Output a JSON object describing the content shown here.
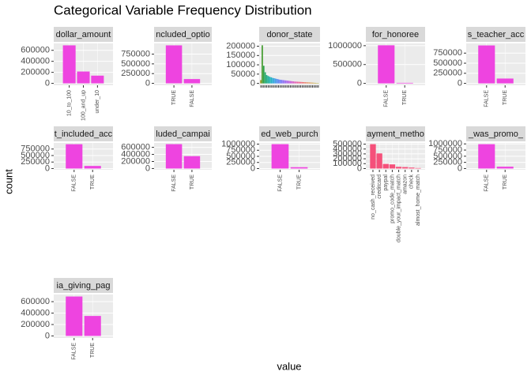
{
  "title": "Categorical Variable Frequency Distribution",
  "x_label": "value",
  "y_label": "count",
  "bar_color": "#ee44e0",
  "chart_data": [
    {
      "type": "bar",
      "title": "dollar_amount",
      "categories": [
        "10_to_100",
        "100_and_up",
        "under_10"
      ],
      "values": [
        690000,
        215000,
        140000
      ],
      "ylim": [
        -35000,
        725000
      ],
      "yticks": [
        0,
        200000,
        400000,
        600000
      ]
    },
    {
      "type": "bar",
      "title": "ncluded_optio",
      "categories": [
        "TRUE",
        "FALSE"
      ],
      "values": [
        975000,
        110000
      ],
      "ylim": [
        -50000,
        1025000
      ],
      "yticks": [
        0,
        250000,
        500000,
        750000
      ]
    },
    {
      "type": "bar",
      "title": "donor_state",
      "categories": [
        null,
        null,
        null,
        null,
        null,
        null,
        null,
        null,
        null,
        null,
        null,
        null,
        null,
        null,
        null,
        null,
        null,
        null,
        null,
        null,
        null,
        null,
        null,
        null,
        null,
        null,
        null,
        null,
        null,
        null,
        null,
        null,
        null,
        null,
        null,
        null,
        null,
        null,
        null,
        null
      ],
      "values": [
        18000,
        205000,
        95000,
        60000,
        45000,
        40000,
        36000,
        33000,
        30000,
        28000,
        26000,
        24000,
        22000,
        20000,
        19000,
        18000,
        17000,
        16000,
        15000,
        14000,
        13000,
        12000,
        11000,
        10000,
        9500,
        9000,
        8500,
        8000,
        7500,
        7000,
        6500,
        6000,
        5500,
        5000,
        4500,
        4000,
        3500,
        3000,
        2500,
        2000
      ],
      "colors": [
        "#9a9a20",
        "#3f9a2a",
        "#2aa04a",
        "#25a96b",
        "#22ad85",
        "#21b09a",
        "#20b2ae",
        "#21b0c2",
        "#28aad3",
        "#35a2e0",
        "#4499ea",
        "#5390f0",
        "#6087f3",
        "#6d7ff5",
        "#7a78f6",
        "#8872f5",
        "#956df2",
        "#a26aee",
        "#ae67e8",
        "#ba64e1",
        "#c562d9",
        "#cf60cf",
        "#d85fc4",
        "#df5fb8",
        "#e560ab",
        "#e9629e",
        "#ec6590",
        "#ee6883",
        "#ee6c76",
        "#ed716a",
        "#ea775f",
        "#e67e55",
        "#e1854b",
        "#db8c43",
        "#d4923c",
        "#cc9836",
        "#c29d31",
        "#b8a22e",
        "#ada52c",
        "#a1a82b"
      ],
      "ylim": [
        -10000,
        215000
      ],
      "yticks": [
        0,
        50000,
        100000,
        150000,
        200000
      ]
    },
    {
      "type": "bar",
      "title": "for_honoree",
      "categories": [
        "FALSE",
        "TRUE"
      ],
      "values": [
        1010000,
        15000
      ],
      "ylim": [
        -50000,
        1060000
      ],
      "yticks": [
        0,
        500000,
        1000000
      ]
    },
    {
      "type": "bar",
      "title": "s_teacher_acc",
      "categories": [
        "FALSE",
        "TRUE"
      ],
      "values": [
        940000,
        120000
      ],
      "ylim": [
        -47000,
        990000
      ],
      "yticks": [
        0,
        250000,
        500000,
        750000
      ]
    },
    {
      "type": "bar",
      "title": "t_included_acc",
      "categories": [
        "FALSE",
        "TRUE"
      ],
      "values": [
        935000,
        100000
      ],
      "ylim": [
        -47000,
        985000
      ],
      "yticks": [
        0,
        250000,
        500000,
        750000
      ]
    },
    {
      "type": "bar",
      "title": "luded_campai",
      "categories": [
        "FALSE",
        "TRUE"
      ],
      "values": [
        690000,
        350000
      ],
      "ylim": [
        -35000,
        725000
      ],
      "yticks": [
        0,
        200000,
        400000,
        600000
      ]
    },
    {
      "type": "bar",
      "title": "ed_web_purch",
      "categories": [
        "FALSE",
        "TRUE"
      ],
      "values": [
        1000000,
        55000
      ],
      "ylim": [
        -50000,
        1050000
      ],
      "yticks": [
        0,
        250000,
        500000,
        750000,
        1000000
      ]
    },
    {
      "type": "bar",
      "title": "ayment_metho",
      "color": "#f5507a",
      "categories": [
        "no_cash_received",
        "creditcard",
        "paypal",
        "promo_code_match",
        "double_your_impact_match",
        "amazon",
        "check",
        "almost_home_match"
      ],
      "values": [
        500000,
        310000,
        95000,
        85000,
        35000,
        30000,
        20000,
        10000
      ],
      "ylim": [
        -25000,
        525000
      ],
      "yticks": [
        0,
        100000,
        200000,
        300000,
        400000,
        500000
      ]
    },
    {
      "type": "bar",
      "title": "_was_promo_",
      "categories": [
        "FALSE",
        "TRUE"
      ],
      "values": [
        990000,
        75000
      ],
      "ylim": [
        -50000,
        1040000
      ],
      "yticks": [
        0,
        250000,
        500000,
        750000,
        1000000
      ]
    },
    {
      "type": "bar",
      "title": "ia_giving_pag",
      "categories": [
        "FALSE",
        "TRUE"
      ],
      "values": [
        690000,
        350000
      ],
      "ylim": [
        -35000,
        725000
      ],
      "yticks": [
        0,
        200000,
        400000,
        600000
      ]
    }
  ]
}
